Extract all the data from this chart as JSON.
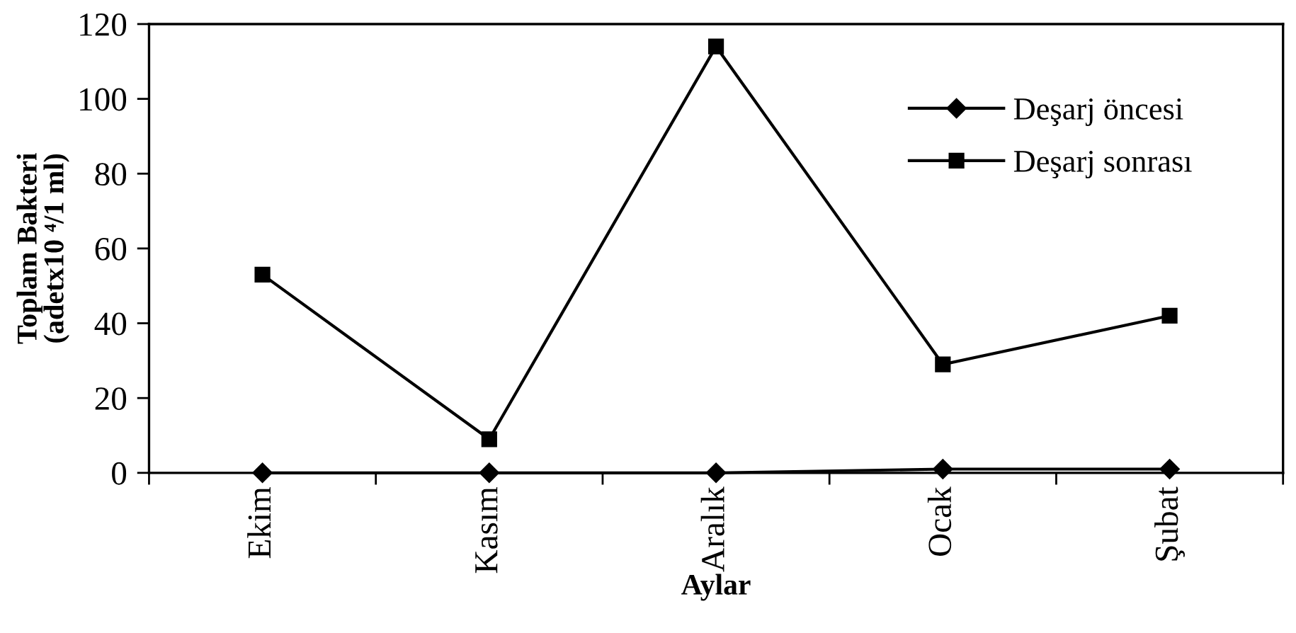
{
  "chart_data": {
    "type": "line",
    "xlabel": "Aylar",
    "ylabel": "Toplam Bakteri\n(adetx10 ⁴/1 ml)",
    "categories": [
      "Ekim",
      "Kasım",
      "Aralık",
      "Ocak",
      "Şubat"
    ],
    "series": [
      {
        "name": "Deşarj öncesi",
        "color": "#000000",
        "marker": "diamond",
        "values": [
          0,
          0,
          0,
          1,
          1
        ]
      },
      {
        "name": "Deşarj sonrası",
        "color": "#000000",
        "marker": "square",
        "values": [
          53,
          9,
          114,
          29,
          42
        ]
      }
    ],
    "ylim": [
      0,
      120
    ],
    "yticks": [
      0,
      20,
      40,
      60,
      80,
      100,
      120
    ],
    "grid": false,
    "legend": "top right",
    "line_style": "solid"
  }
}
